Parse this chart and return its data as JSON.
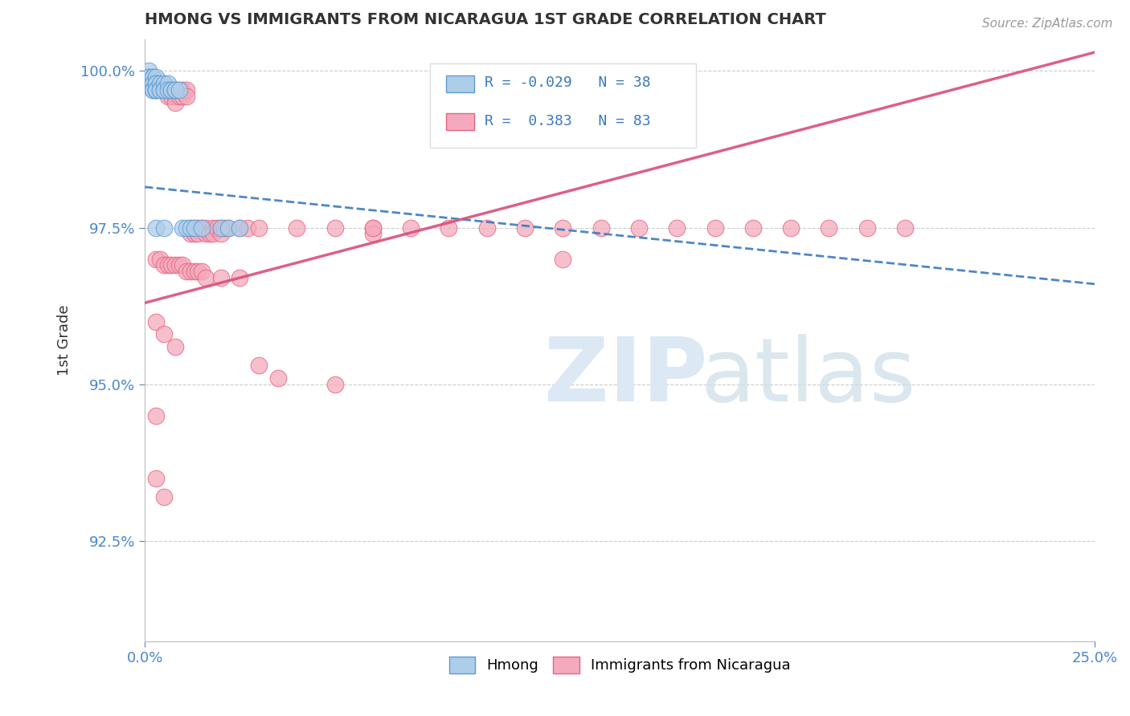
{
  "title": "HMONG VS IMMIGRANTS FROM NICARAGUA 1ST GRADE CORRELATION CHART",
  "source_text": "Source: ZipAtlas.com",
  "ylabel": "1st Grade",
  "xlim": [
    0.0,
    0.25
  ],
  "ylim": [
    0.909,
    1.005
  ],
  "xtick_labels": [
    "0.0%",
    "25.0%"
  ],
  "xtick_positions": [
    0.0,
    0.25
  ],
  "ytick_labels": [
    "92.5%",
    "95.0%",
    "97.5%",
    "100.0%"
  ],
  "ytick_positions": [
    0.925,
    0.95,
    0.975,
    1.0
  ],
  "legend_entries": [
    "Hmong",
    "Immigrants from Nicaragua"
  ],
  "blue_R": -0.029,
  "blue_N": 38,
  "pink_R": 0.383,
  "pink_N": 83,
  "blue_dot_fill": "#aecde8",
  "blue_dot_edge": "#5b9bd5",
  "pink_dot_fill": "#f4aabc",
  "pink_dot_edge": "#e8637e",
  "blue_line_color": "#3a7abf",
  "pink_line_color": "#d94f7a",
  "blue_dots": [
    [
      0.001,
      1.0
    ],
    [
      0.001,
      0.999
    ],
    [
      0.001,
      0.999
    ],
    [
      0.002,
      0.999
    ],
    [
      0.002,
      0.999
    ],
    [
      0.002,
      0.998
    ],
    [
      0.002,
      0.998
    ],
    [
      0.002,
      0.997
    ],
    [
      0.002,
      0.997
    ],
    [
      0.003,
      0.999
    ],
    [
      0.003,
      0.998
    ],
    [
      0.003,
      0.998
    ],
    [
      0.003,
      0.997
    ],
    [
      0.003,
      0.997
    ],
    [
      0.003,
      0.997
    ],
    [
      0.004,
      0.998
    ],
    [
      0.004,
      0.997
    ],
    [
      0.004,
      0.997
    ],
    [
      0.005,
      0.998
    ],
    [
      0.005,
      0.997
    ],
    [
      0.005,
      0.997
    ],
    [
      0.006,
      0.998
    ],
    [
      0.006,
      0.997
    ],
    [
      0.007,
      0.997
    ],
    [
      0.007,
      0.997
    ],
    [
      0.008,
      0.997
    ],
    [
      0.008,
      0.997
    ],
    [
      0.009,
      0.997
    ],
    [
      0.01,
      0.975
    ],
    [
      0.011,
      0.975
    ],
    [
      0.012,
      0.975
    ],
    [
      0.013,
      0.975
    ],
    [
      0.015,
      0.975
    ],
    [
      0.02,
      0.975
    ],
    [
      0.022,
      0.975
    ],
    [
      0.025,
      0.975
    ],
    [
      0.003,
      0.975
    ],
    [
      0.005,
      0.975
    ]
  ],
  "pink_dots": [
    [
      0.001,
      0.999
    ],
    [
      0.003,
      0.998
    ],
    [
      0.003,
      0.997
    ],
    [
      0.005,
      0.998
    ],
    [
      0.005,
      0.997
    ],
    [
      0.006,
      0.997
    ],
    [
      0.006,
      0.996
    ],
    [
      0.007,
      0.997
    ],
    [
      0.007,
      0.996
    ],
    [
      0.008,
      0.997
    ],
    [
      0.008,
      0.996
    ],
    [
      0.008,
      0.995
    ],
    [
      0.009,
      0.997
    ],
    [
      0.009,
      0.996
    ],
    [
      0.01,
      0.997
    ],
    [
      0.01,
      0.996
    ],
    [
      0.011,
      0.997
    ],
    [
      0.011,
      0.996
    ],
    [
      0.012,
      0.975
    ],
    [
      0.012,
      0.974
    ],
    [
      0.013,
      0.975
    ],
    [
      0.013,
      0.974
    ],
    [
      0.014,
      0.975
    ],
    [
      0.014,
      0.974
    ],
    [
      0.015,
      0.975
    ],
    [
      0.016,
      0.975
    ],
    [
      0.016,
      0.974
    ],
    [
      0.017,
      0.974
    ],
    [
      0.018,
      0.975
    ],
    [
      0.018,
      0.974
    ],
    [
      0.019,
      0.975
    ],
    [
      0.02,
      0.975
    ],
    [
      0.02,
      0.974
    ],
    [
      0.021,
      0.975
    ],
    [
      0.022,
      0.975
    ],
    [
      0.025,
      0.975
    ],
    [
      0.027,
      0.975
    ],
    [
      0.03,
      0.975
    ],
    [
      0.04,
      0.975
    ],
    [
      0.05,
      0.975
    ],
    [
      0.06,
      0.975
    ],
    [
      0.06,
      0.974
    ],
    [
      0.07,
      0.975
    ],
    [
      0.08,
      0.975
    ],
    [
      0.09,
      0.975
    ],
    [
      0.1,
      0.975
    ],
    [
      0.11,
      0.975
    ],
    [
      0.12,
      0.975
    ],
    [
      0.13,
      0.975
    ],
    [
      0.14,
      0.975
    ],
    [
      0.15,
      0.975
    ],
    [
      0.16,
      0.975
    ],
    [
      0.17,
      0.975
    ],
    [
      0.18,
      0.975
    ],
    [
      0.19,
      0.975
    ],
    [
      0.2,
      0.975
    ],
    [
      0.003,
      0.97
    ],
    [
      0.004,
      0.97
    ],
    [
      0.005,
      0.969
    ],
    [
      0.006,
      0.969
    ],
    [
      0.007,
      0.969
    ],
    [
      0.008,
      0.969
    ],
    [
      0.009,
      0.969
    ],
    [
      0.01,
      0.969
    ],
    [
      0.011,
      0.968
    ],
    [
      0.012,
      0.968
    ],
    [
      0.013,
      0.968
    ],
    [
      0.014,
      0.968
    ],
    [
      0.015,
      0.968
    ],
    [
      0.016,
      0.967
    ],
    [
      0.02,
      0.967
    ],
    [
      0.025,
      0.967
    ],
    [
      0.003,
      0.96
    ],
    [
      0.005,
      0.958
    ],
    [
      0.008,
      0.956
    ],
    [
      0.03,
      0.953
    ],
    [
      0.035,
      0.951
    ],
    [
      0.05,
      0.95
    ],
    [
      0.003,
      0.945
    ],
    [
      0.003,
      0.935
    ],
    [
      0.005,
      0.932
    ],
    [
      0.06,
      0.975
    ],
    [
      0.11,
      0.97
    ]
  ],
  "blue_trend_x": [
    0.0,
    0.25
  ],
  "blue_trend_y": [
    0.9815,
    0.966
  ],
  "pink_trend_x": [
    0.0,
    0.25
  ],
  "pink_trend_y": [
    0.963,
    1.003
  ]
}
